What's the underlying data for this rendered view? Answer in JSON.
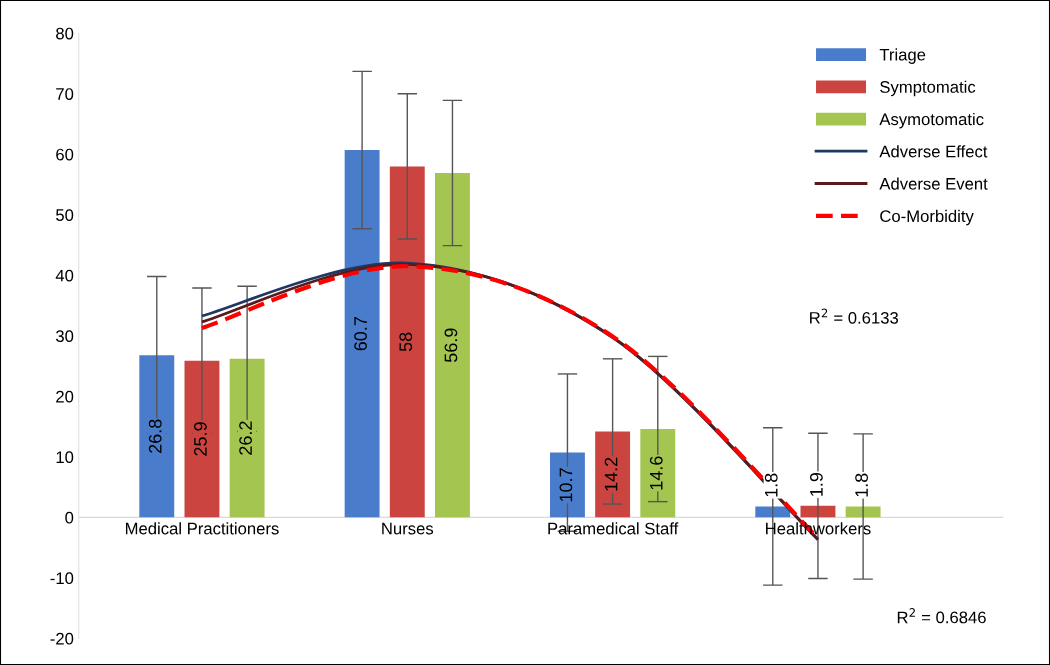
{
  "chart_data": {
    "type": "bar",
    "categories": [
      "Medical Practitioners",
      "Nurses",
      "Paramedical Staff",
      "Healthworkers"
    ],
    "series": [
      {
        "name": "Triage",
        "color": "#4a7ccc",
        "values": [
          26.8,
          60.7,
          10.7,
          1.8
        ],
        "value_labels": [
          "26.8",
          "60.7",
          "10.7",
          "1.8"
        ],
        "errors": [
          13,
          13,
          13,
          13
        ]
      },
      {
        "name": "Symptomatic",
        "color": "#cc4440",
        "values": [
          25.9,
          58,
          14.2,
          1.9
        ],
        "value_labels": [
          "25.9",
          "58",
          "14.2",
          "1.9"
        ],
        "errors": [
          12,
          12,
          12,
          12
        ]
      },
      {
        "name": "Asymotomatic",
        "color": "#a4c54f",
        "values": [
          26.2,
          56.9,
          14.6,
          1.8
        ],
        "value_labels": [
          "26.2",
          "56.9",
          "14.6",
          "1.8"
        ],
        "errors": [
          12,
          12,
          12,
          12
        ]
      },
      {
        "name": "Adverse Effect",
        "type": "line",
        "color": "#1f3864",
        "line_style": "solid",
        "values": [
          33.3,
          42.0,
          29.7,
          -3.7
        ]
      },
      {
        "name": "Adverse Event",
        "type": "line",
        "color": "#5a1a1a",
        "line_style": "solid",
        "values": [
          32.3,
          41.8,
          29.8,
          -3.6
        ]
      },
      {
        "name": "Co-Morbidity",
        "type": "line",
        "color": "#ff0000",
        "line_style": "dashed",
        "values": [
          31.3,
          41.5,
          29.9,
          -3.4
        ]
      }
    ],
    "ylim": [
      -20,
      80
    ],
    "yticks": [
      -20,
      -10,
      0,
      10,
      20,
      30,
      40,
      50,
      60,
      70,
      80
    ],
    "legend": "top right",
    "grid": false,
    "annotations": [
      "R$^{2}$ = 0.6133",
      "R$^{2}$ = 0.6846"
    ]
  }
}
